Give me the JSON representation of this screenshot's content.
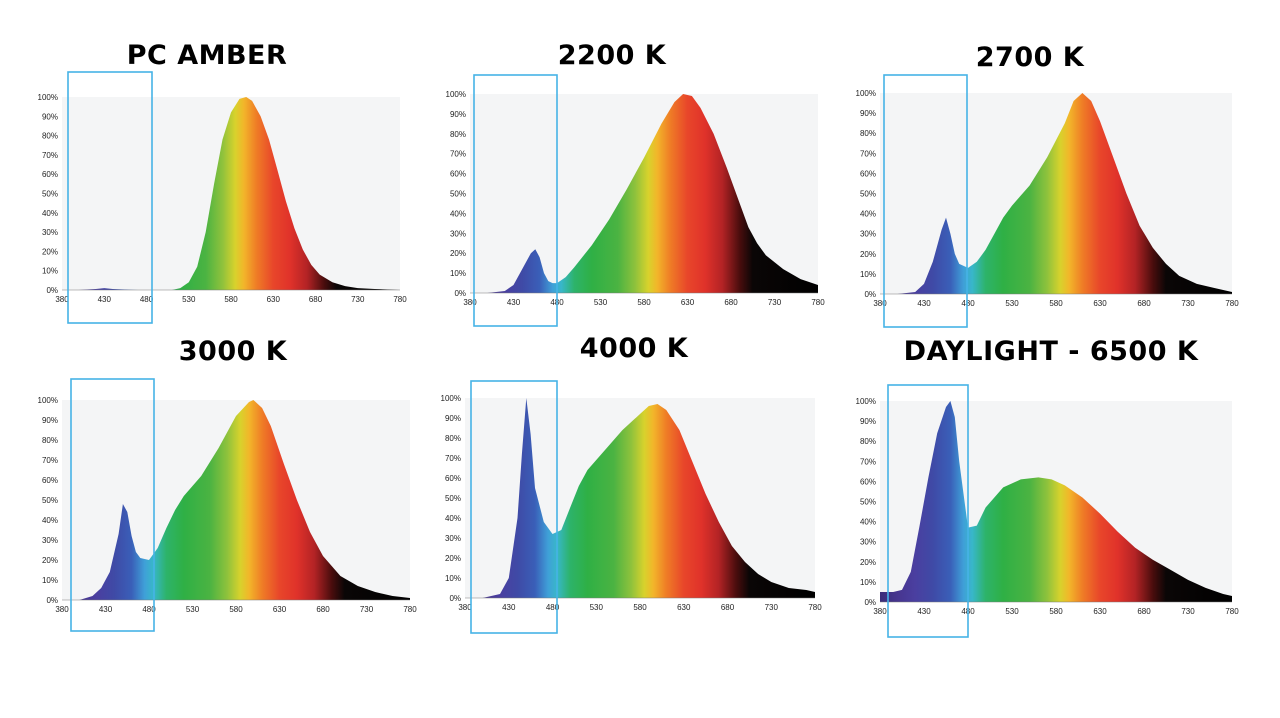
{
  "chart_data": [
    {
      "type": "area",
      "title": "PC AMBER",
      "x_range": [
        380,
        780
      ],
      "y_range": [
        0,
        100
      ],
      "x_ticks": [
        380,
        430,
        480,
        530,
        580,
        630,
        680,
        730,
        780
      ],
      "y_ticks": [
        "0%",
        "10%",
        "20%",
        "30%",
        "40%",
        "50%",
        "60%",
        "70%",
        "80%",
        "90%",
        "100%"
      ],
      "highlight_range": [
        380,
        480
      ],
      "x": [
        380,
        400,
        420,
        430,
        440,
        450,
        470,
        490,
        510,
        520,
        530,
        540,
        550,
        560,
        570,
        580,
        590,
        598,
        605,
        615,
        625,
        635,
        645,
        655,
        665,
        675,
        685,
        700,
        715,
        730,
        750,
        780
      ],
      "values": [
        0,
        0,
        0.5,
        1,
        0.5,
        0.3,
        0,
        0,
        0,
        1,
        4,
        12,
        30,
        55,
        78,
        92,
        99,
        100,
        98,
        90,
        78,
        62,
        46,
        32,
        21,
        13,
        8,
        4,
        2,
        1,
        0.5,
        0
      ]
    },
    {
      "type": "area",
      "title": "2200 K",
      "x_range": [
        380,
        780
      ],
      "y_range": [
        0,
        100
      ],
      "x_ticks": [
        380,
        430,
        480,
        530,
        580,
        630,
        680,
        730,
        780
      ],
      "y_ticks": [
        "0%",
        "10%",
        "20%",
        "30%",
        "40%",
        "50%",
        "60%",
        "70%",
        "80%",
        "90%",
        "100%"
      ],
      "highlight_range": [
        380,
        480
      ],
      "x": [
        380,
        400,
        420,
        430,
        440,
        450,
        455,
        460,
        465,
        470,
        475,
        480,
        490,
        500,
        520,
        540,
        560,
        580,
        600,
        615,
        625,
        635,
        645,
        660,
        675,
        690,
        700,
        710,
        720,
        740,
        760,
        780
      ],
      "values": [
        0,
        0,
        1,
        4,
        12,
        20,
        22,
        18,
        10,
        6,
        5,
        5,
        8,
        13,
        24,
        37,
        52,
        68,
        85,
        96,
        100,
        99,
        93,
        80,
        63,
        45,
        33,
        25,
        19,
        12,
        7,
        4
      ]
    },
    {
      "type": "area",
      "title": "2700 K",
      "x_range": [
        380,
        780
      ],
      "y_range": [
        0,
        100
      ],
      "x_ticks": [
        380,
        430,
        480,
        530,
        580,
        630,
        680,
        730,
        780
      ],
      "y_ticks": [
        "0%",
        "10%",
        "20%",
        "30%",
        "40%",
        "50%",
        "60%",
        "70%",
        "80%",
        "90%",
        "100%"
      ],
      "highlight_range": [
        380,
        480
      ],
      "x": [
        380,
        400,
        420,
        430,
        440,
        450,
        455,
        460,
        465,
        470,
        480,
        490,
        500,
        510,
        520,
        530,
        550,
        570,
        590,
        600,
        610,
        620,
        630,
        645,
        660,
        675,
        690,
        705,
        720,
        740,
        760,
        780
      ],
      "values": [
        0,
        0,
        1,
        5,
        16,
        32,
        38,
        30,
        20,
        15,
        13,
        16,
        22,
        30,
        38,
        44,
        54,
        68,
        85,
        96,
        100,
        96,
        86,
        68,
        50,
        34,
        23,
        15,
        9,
        5,
        3,
        1
      ]
    },
    {
      "type": "area",
      "title": "3000 K",
      "x_range": [
        380,
        780
      ],
      "y_range": [
        0,
        100
      ],
      "x_ticks": [
        380,
        430,
        480,
        530,
        580,
        630,
        680,
        730,
        780
      ],
      "y_ticks": [
        "0%",
        "10%",
        "20%",
        "30%",
        "40%",
        "50%",
        "60%",
        "70%",
        "80%",
        "90%",
        "100%"
      ],
      "highlight_range": [
        380,
        480
      ],
      "x": [
        380,
        400,
        415,
        425,
        435,
        445,
        450,
        455,
        460,
        465,
        470,
        480,
        490,
        500,
        510,
        520,
        540,
        560,
        580,
        595,
        600,
        610,
        620,
        635,
        650,
        665,
        680,
        700,
        720,
        740,
        760,
        780
      ],
      "values": [
        0,
        0,
        2,
        6,
        14,
        33,
        48,
        44,
        32,
        24,
        21,
        20,
        26,
        36,
        45,
        52,
        62,
        76,
        92,
        99,
        100,
        96,
        87,
        68,
        50,
        34,
        22,
        12,
        7,
        4,
        2,
        1
      ]
    },
    {
      "type": "area",
      "title": "4000 K",
      "x_range": [
        380,
        780
      ],
      "y_range": [
        0,
        100
      ],
      "x_ticks": [
        380,
        430,
        480,
        530,
        580,
        630,
        680,
        730,
        780
      ],
      "y_ticks": [
        "0%",
        "10%",
        "20%",
        "30%",
        "40%",
        "50%",
        "60%",
        "70%",
        "80%",
        "90%",
        "100%"
      ],
      "highlight_range": [
        380,
        480
      ],
      "x": [
        380,
        400,
        420,
        430,
        440,
        445,
        450,
        455,
        460,
        470,
        480,
        490,
        500,
        510,
        520,
        540,
        560,
        580,
        590,
        600,
        610,
        625,
        640,
        655,
        670,
        685,
        700,
        715,
        730,
        750,
        770,
        780
      ],
      "values": [
        0,
        0,
        2,
        10,
        40,
        72,
        100,
        82,
        55,
        38,
        32,
        34,
        45,
        56,
        64,
        74,
        84,
        92,
        96,
        97,
        94,
        84,
        68,
        52,
        38,
        26,
        18,
        12,
        8,
        5,
        4,
        3
      ]
    },
    {
      "type": "area",
      "title": "DAYLIGHT - 6500 K",
      "x_range": [
        380,
        780
      ],
      "y_range": [
        0,
        100
      ],
      "x_ticks": [
        380,
        430,
        480,
        530,
        580,
        630,
        680,
        730,
        780
      ],
      "y_ticks": [
        "0%",
        "10%",
        "20%",
        "30%",
        "40%",
        "50%",
        "60%",
        "70%",
        "80%",
        "90%",
        "100%"
      ],
      "highlight_range": [
        380,
        480
      ],
      "x": [
        380,
        395,
        405,
        415,
        425,
        435,
        445,
        455,
        460,
        465,
        470,
        480,
        490,
        500,
        520,
        540,
        560,
        575,
        590,
        610,
        630,
        650,
        670,
        690,
        710,
        730,
        750,
        770,
        780
      ],
      "values": [
        5,
        5,
        6,
        15,
        38,
        62,
        84,
        97,
        100,
        92,
        70,
        37,
        38,
        47,
        57,
        61,
        62,
        61,
        58,
        52,
        44,
        35,
        27,
        21,
        16,
        11,
        7,
        4,
        3
      ]
    }
  ],
  "colors": {
    "plot_bg": "#f4f5f6",
    "highlight_box": "#46b3e6",
    "axis": "#7a7a7a"
  }
}
